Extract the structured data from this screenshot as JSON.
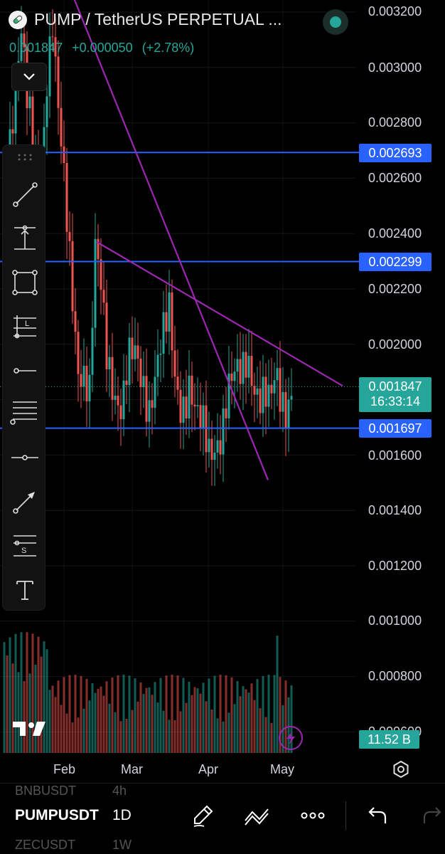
{
  "header": {
    "title": "PUMP / TetherUS PERPETUAL ...",
    "last_price": "0.001847",
    "change_abs": "+0.000050",
    "change_pct": "(+2.78%)"
  },
  "colors": {
    "up": "#26a69a",
    "down": "#ef5350",
    "level_line": "#2962ff",
    "trendline": "#9c27b0",
    "background": "#000000"
  },
  "toolbar": {
    "tools": [
      "trend-line-icon",
      "vertical-measure-icon",
      "rectangle-icon",
      "long-position-icon",
      "horizontal-ray-icon",
      "parallel-channel-icon",
      "horizontal-line-icon",
      "arrow-icon",
      "short-position-icon",
      "text-icon"
    ]
  },
  "price_axis": {
    "labels": [
      "0.003200",
      "0.003000",
      "0.002800",
      "0.002600",
      "0.002400",
      "0.002200",
      "0.002000",
      "0.001600",
      "0.001400",
      "0.001200",
      "0.001000",
      "0.000800"
    ],
    "partial_label": "0.000600"
  },
  "levels": [
    {
      "price": 0.002693,
      "label": "0.002693"
    },
    {
      "price": 0.002299,
      "label": "0.002299"
    },
    {
      "price": 0.001697,
      "label": "0.001697"
    }
  ],
  "current": {
    "price": 0.001847,
    "label": "0.001847",
    "countdown": "16:33:14"
  },
  "volume": {
    "label": "11.52 B"
  },
  "time_axis": {
    "labels": [
      "Feb",
      "Mar",
      "Apr",
      "May"
    ]
  },
  "chart_data": {
    "type": "candlestick",
    "interval": "1D",
    "y_range": [
      0.0015,
      0.0032
    ],
    "x_labels": [
      "Feb",
      "Mar",
      "Apr",
      "May"
    ],
    "trendlines": [
      {
        "from": {
          "date": "late Jan",
          "price": 0.00325
        },
        "to": {
          "date": "late Apr",
          "price": 0.00151
        }
      },
      {
        "from": {
          "date": "mid Feb",
          "price": 0.00237
        },
        "to": {
          "date": "early May",
          "price": 0.00185
        }
      }
    ],
    "horizontal_levels": [
      0.002693,
      0.002299,
      0.001697
    ],
    "last_close": 0.001847
  },
  "bottom": {
    "ghost_top": [
      "BNBUSDT",
      "4h"
    ],
    "symbol": "PUMPUSDT",
    "timeframe": "1D",
    "ghost_bottom": [
      "ZECUSDT",
      "1W"
    ]
  }
}
